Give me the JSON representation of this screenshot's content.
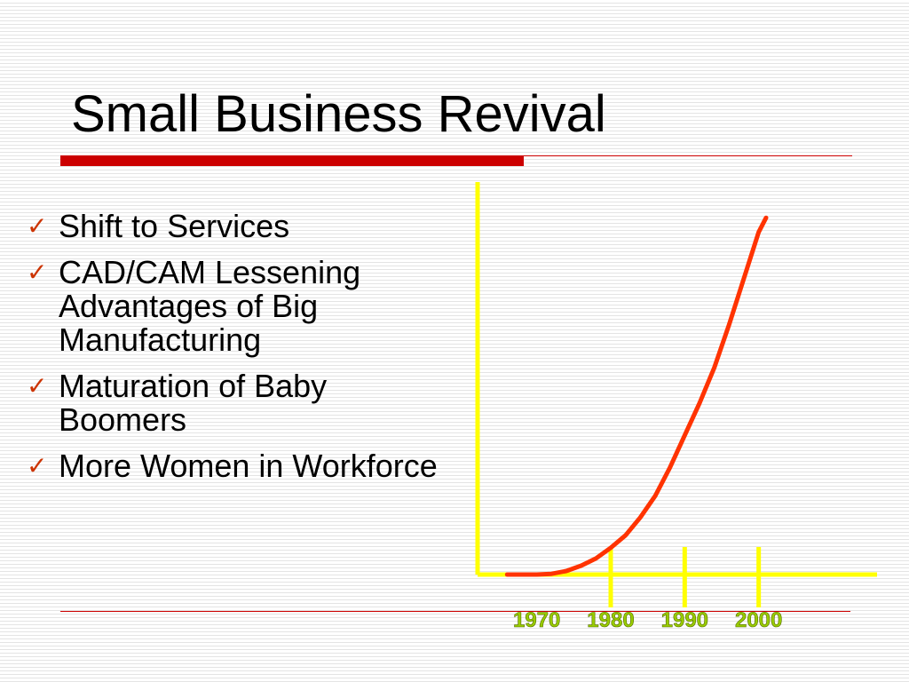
{
  "slide": {
    "title": "Small Business Revival",
    "bullets": [
      "Shift to Services",
      "CAD/CAM Lessening Advantages of Big Manufacturing",
      "Maturation of Baby Boomers",
      "More Women in Workforce"
    ],
    "icons": {
      "bullet": "check-icon"
    }
  },
  "colors": {
    "title_bar": "#cc0000",
    "bullet_check": "#cc3300",
    "axis": "#ffff00",
    "curve": "#ff3300",
    "tick_label": "#99cc00"
  },
  "chart_data": {
    "type": "line",
    "title": "",
    "xlabel": "",
    "ylabel": "",
    "tick_labels": [
      "1970",
      "1980",
      "1990",
      "2000"
    ],
    "x": [
      1966,
      1970,
      1972,
      1974,
      1976,
      1978,
      1980,
      1982,
      1984,
      1986,
      1988,
      1990,
      1992,
      1994,
      1996,
      1998,
      2000,
      2001
    ],
    "y": [
      0,
      0,
      0.2,
      1,
      2.5,
      4.5,
      7.5,
      11,
      16,
      22,
      30,
      39,
      48,
      58,
      70,
      83,
      96,
      100
    ],
    "xlim": [
      1962,
      2016
    ],
    "ylim": [
      0,
      110
    ],
    "grid": false,
    "legend": "none"
  }
}
